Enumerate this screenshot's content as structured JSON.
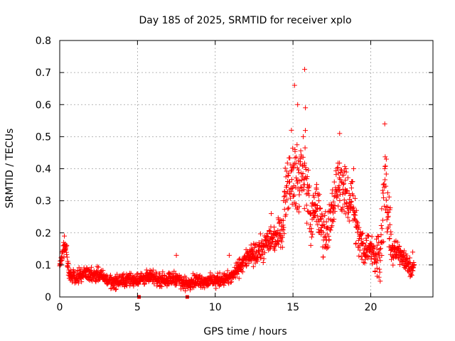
{
  "chart_data": {
    "type": "scatter",
    "title": "Day 185 of 2025, SRMTID for receiver xplo",
    "xlabel": "GPS time / hours",
    "ylabel": "SRMTID / TECUs",
    "xlim": [
      0,
      24
    ],
    "ylim": [
      0,
      0.8
    ],
    "xticks": [
      0,
      5,
      10,
      15,
      20
    ],
    "yticks": [
      0,
      0.1,
      0.2,
      0.3,
      0.4,
      0.5,
      0.6,
      0.7,
      0.8
    ],
    "xtick_labels": [
      "0",
      "5",
      "10",
      "15",
      "20"
    ],
    "ytick_labels": [
      "0",
      "0.1",
      "0.2",
      "0.3",
      "0.4",
      "0.5",
      "0.6",
      "0.7",
      "0.8"
    ],
    "grid": true,
    "marker": "plus",
    "color": "#ff0000",
    "series": [
      {
        "name": "SRMTID",
        "trend": [
          [
            0.0,
            0.09
          ],
          [
            0.2,
            0.14
          ],
          [
            0.4,
            0.16
          ],
          [
            0.6,
            0.07
          ],
          [
            1.0,
            0.06
          ],
          [
            1.5,
            0.075
          ],
          [
            2.0,
            0.07
          ],
          [
            2.5,
            0.07
          ],
          [
            3.0,
            0.055
          ],
          [
            3.5,
            0.045
          ],
          [
            4.0,
            0.05
          ],
          [
            4.5,
            0.055
          ],
          [
            5.0,
            0.055
          ],
          [
            5.5,
            0.06
          ],
          [
            6.0,
            0.06
          ],
          [
            6.5,
            0.055
          ],
          [
            7.0,
            0.055
          ],
          [
            7.5,
            0.06
          ],
          [
            8.0,
            0.04
          ],
          [
            8.5,
            0.05
          ],
          [
            9.0,
            0.05
          ],
          [
            9.5,
            0.05
          ],
          [
            10.0,
            0.05
          ],
          [
            10.5,
            0.055
          ],
          [
            11.0,
            0.06
          ],
          [
            11.5,
            0.09
          ],
          [
            12.0,
            0.12
          ],
          [
            12.5,
            0.13
          ],
          [
            13.0,
            0.15
          ],
          [
            13.5,
            0.18
          ],
          [
            14.0,
            0.19
          ],
          [
            14.3,
            0.22
          ],
          [
            14.6,
            0.35
          ],
          [
            15.0,
            0.4
          ],
          [
            15.3,
            0.35
          ],
          [
            15.6,
            0.4
          ],
          [
            15.9,
            0.35
          ],
          [
            16.2,
            0.22
          ],
          [
            16.5,
            0.3
          ],
          [
            16.8,
            0.22
          ],
          [
            17.2,
            0.2
          ],
          [
            17.6,
            0.28
          ],
          [
            18.0,
            0.38
          ],
          [
            18.4,
            0.3
          ],
          [
            18.8,
            0.32
          ],
          [
            19.2,
            0.18
          ],
          [
            19.6,
            0.15
          ],
          [
            20.0,
            0.16
          ],
          [
            20.3,
            0.12
          ],
          [
            20.6,
            0.15
          ],
          [
            20.9,
            0.35
          ],
          [
            21.1,
            0.25
          ],
          [
            21.4,
            0.14
          ],
          [
            21.8,
            0.14
          ],
          [
            22.2,
            0.12
          ],
          [
            22.6,
            0.08
          ],
          [
            22.8,
            0.09
          ]
        ],
        "spread": [
          [
            0.0,
            0.03
          ],
          [
            5.0,
            0.03
          ],
          [
            11.0,
            0.03
          ],
          [
            12.5,
            0.05
          ],
          [
            14.0,
            0.07
          ],
          [
            15.0,
            0.16
          ],
          [
            15.7,
            0.18
          ],
          [
            16.5,
            0.1
          ],
          [
            17.5,
            0.12
          ],
          [
            18.2,
            0.12
          ],
          [
            19.0,
            0.1
          ],
          [
            20.0,
            0.06
          ],
          [
            20.9,
            0.18
          ],
          [
            21.5,
            0.05
          ],
          [
            22.8,
            0.04
          ]
        ],
        "peaks": [
          [
            0.3,
            0.19
          ],
          [
            7.5,
            0.13
          ],
          [
            10.9,
            0.13
          ],
          [
            13.6,
            0.26
          ],
          [
            14.9,
            0.52
          ],
          [
            15.1,
            0.66
          ],
          [
            15.3,
            0.6
          ],
          [
            15.75,
            0.71
          ],
          [
            15.8,
            0.59
          ],
          [
            16.5,
            0.34
          ],
          [
            18.0,
            0.51
          ],
          [
            18.4,
            0.4
          ],
          [
            18.9,
            0.4
          ],
          [
            20.9,
            0.54
          ],
          [
            21.0,
            0.43
          ],
          [
            21.1,
            0.28
          ],
          [
            22.7,
            0.14
          ]
        ],
        "lows": [
          [
            5.1,
            0.0
          ],
          [
            8.2,
            0.0
          ]
        ],
        "count": 1700
      }
    ]
  }
}
